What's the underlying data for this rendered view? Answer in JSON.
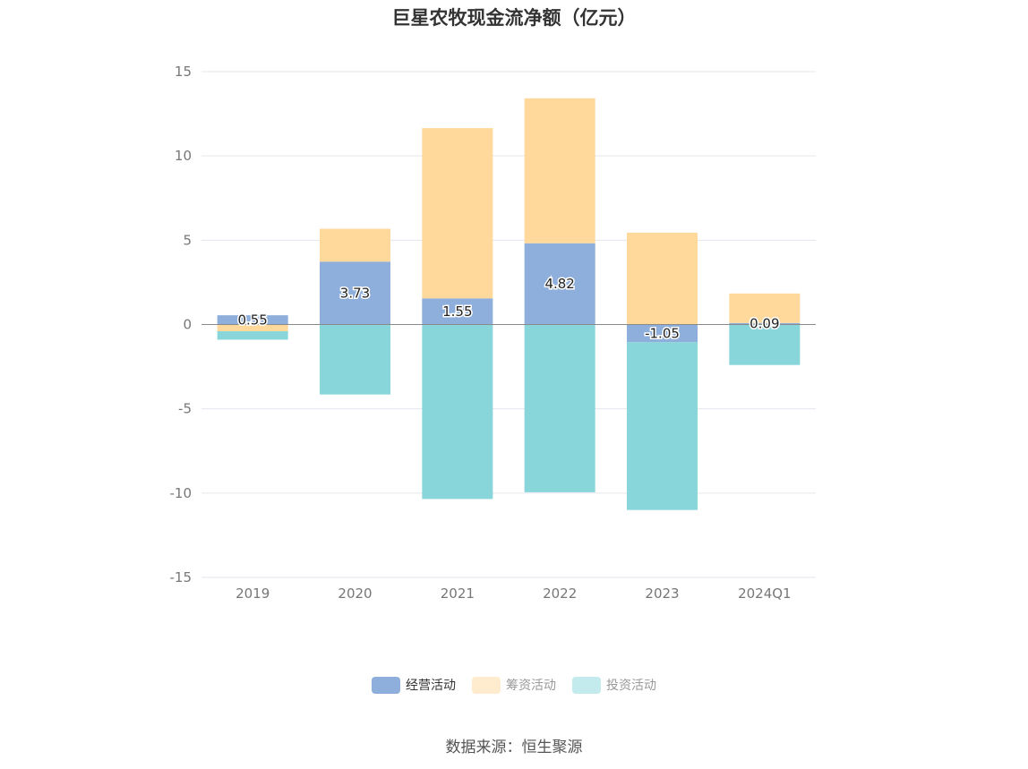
{
  "title": "巨星农牧现金流净额（亿元）",
  "source": "数据来源：恒生聚源",
  "chart_data": {
    "type": "bar",
    "stacked": true,
    "categories": [
      "2019",
      "2020",
      "2021",
      "2022",
      "2023",
      "2024Q1"
    ],
    "ylim": [
      -15,
      15
    ],
    "yticks": [
      15,
      10,
      5,
      0,
      -5,
      -10,
      -15
    ],
    "grid": true,
    "legend_position": "bottom-center",
    "series": [
      {
        "name": "经营活动",
        "color": "#8eaedb",
        "legend_color": "#8eaedb",
        "values": [
          0.55,
          3.73,
          1.55,
          4.82,
          -1.05,
          0.09
        ],
        "labels": [
          "0.55",
          "3.73",
          "1.55",
          "4.82",
          "-1.05",
          "0.09"
        ]
      },
      {
        "name": "筹资活动",
        "color": "#fed99b",
        "legend_color": "#ffebcd",
        "values": [
          -0.4,
          1.95,
          10.1,
          8.6,
          5.45,
          1.75
        ]
      },
      {
        "name": "投资活动",
        "color": "#88d6da",
        "legend_color": "#c3eaec",
        "values": [
          -0.5,
          -4.15,
          -10.35,
          -9.95,
          -9.95,
          -2.4
        ]
      }
    ]
  }
}
